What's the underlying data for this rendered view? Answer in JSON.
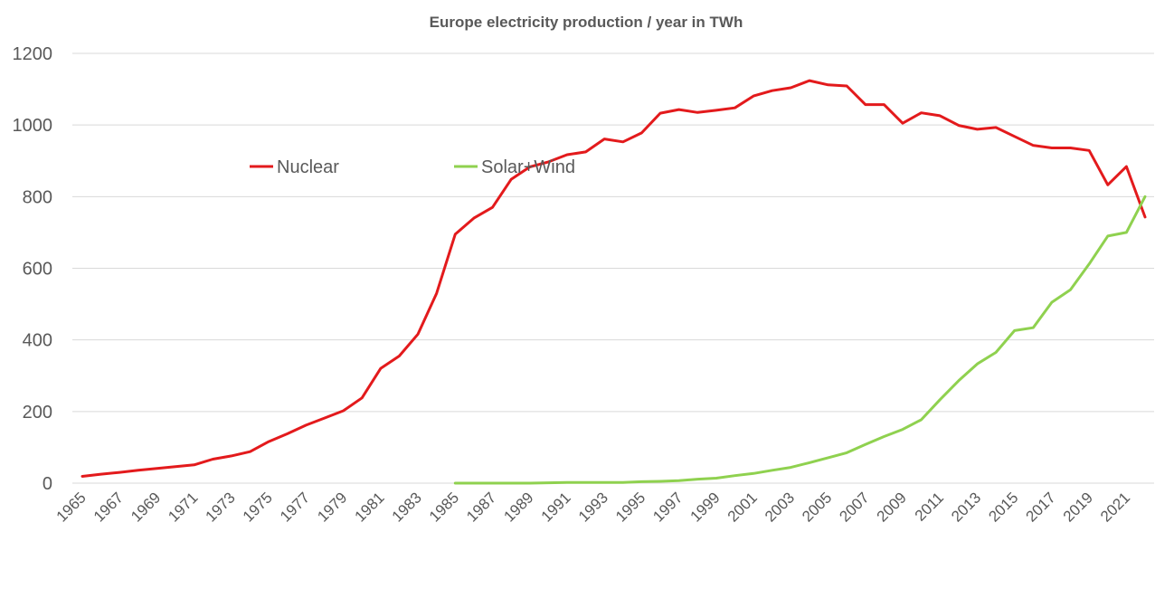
{
  "chart_data": {
    "type": "line",
    "title": "Europe  electricity production  / year in TWh",
    "xlabel": "",
    "ylabel": "",
    "ylim": [
      0,
      1200
    ],
    "yticks": [
      0,
      200,
      400,
      600,
      800,
      1000,
      1200
    ],
    "grid": true,
    "legend_position": "top-left",
    "x": [
      1965,
      1966,
      1967,
      1968,
      1969,
      1970,
      1971,
      1972,
      1973,
      1974,
      1975,
      1976,
      1977,
      1978,
      1979,
      1980,
      1981,
      1982,
      1983,
      1984,
      1985,
      1986,
      1987,
      1988,
      1989,
      1990,
      1991,
      1992,
      1993,
      1994,
      1995,
      1996,
      1997,
      1998,
      1999,
      2000,
      2001,
      2002,
      2003,
      2004,
      2005,
      2006,
      2007,
      2008,
      2009,
      2010,
      2011,
      2012,
      2013,
      2014,
      2015,
      2016,
      2017,
      2018,
      2019,
      2020,
      2021,
      2022
    ],
    "xtick_labels": [
      "1965",
      "1967",
      "1969",
      "1971",
      "1973",
      "1975",
      "1977",
      "1979",
      "1981",
      "1983",
      "1985",
      "1987",
      "1989",
      "1991",
      "1993",
      "1995",
      "1997",
      "1999",
      "2001",
      "2003",
      "2005",
      "2007",
      "2009",
      "2011",
      "2013",
      "2015",
      "2017",
      "2019",
      "2021"
    ],
    "series": [
      {
        "name": "Nuclear",
        "color": "#e31a1c",
        "values": [
          19,
          25,
          30,
          36,
          41,
          46,
          51,
          67,
          76,
          88,
          116,
          138,
          162,
          182,
          202,
          238,
          320,
          355,
          416,
          530,
          695,
          740,
          770,
          848,
          883,
          897,
          917,
          925,
          961,
          953,
          978,
          1033,
          1043,
          1035,
          1041,
          1048,
          1081,
          1096,
          1104,
          1124,
          1112,
          1109,
          1057,
          1057,
          1005,
          1034,
          1026,
          999,
          988,
          993,
          968,
          943,
          936,
          936,
          929,
          833,
          884,
          743
        ]
      },
      {
        "name": "Solar+Wind",
        "color": "#8fd14f",
        "values": [
          null,
          null,
          null,
          null,
          null,
          null,
          null,
          null,
          null,
          null,
          null,
          null,
          null,
          null,
          null,
          null,
          null,
          null,
          null,
          null,
          0,
          0,
          0,
          0,
          0,
          1,
          2,
          2,
          2,
          2,
          4,
          5,
          7,
          11,
          14,
          21,
          27,
          36,
          44,
          57,
          71,
          85,
          108,
          130,
          150,
          177,
          233,
          286,
          333,
          365,
          426,
          434,
          505,
          540,
          612,
          690,
          700,
          800
        ]
      }
    ]
  }
}
